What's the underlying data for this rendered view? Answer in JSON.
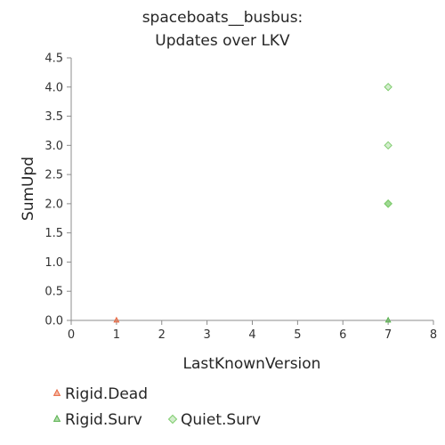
{
  "chart_data": {
    "type": "scatter",
    "title": [
      "spaceboats__busbus:",
      "Updates over LKV"
    ],
    "xlabel": "LastKnownVersion",
    "ylabel": "SumUpd",
    "xlim": [
      0,
      8
    ],
    "ylim": [
      0,
      4.5
    ],
    "x_ticks": [
      "0",
      "1",
      "2",
      "3",
      "4",
      "5",
      "6",
      "7",
      "8"
    ],
    "y_ticks": [
      "0.0",
      "0.5",
      "1.0",
      "1.5",
      "2.0",
      "2.5",
      "3.0",
      "3.5",
      "4.0",
      "4.5"
    ],
    "grid": false,
    "legend_position": "bottom-left",
    "series": [
      {
        "name": "Rigid.Dead",
        "marker": "triangle",
        "color": "#e8643c",
        "points": [
          {
            "x": 1,
            "y": 0
          }
        ]
      },
      {
        "name": "Rigid.Surv",
        "marker": "triangle",
        "color": "#55b04a",
        "points": [
          {
            "x": 7,
            "y": 0
          }
        ]
      },
      {
        "name": "Quiet.Surv",
        "marker": "diamond",
        "color": "#7fcc6e",
        "points": [
          {
            "x": 7,
            "y": 4
          },
          {
            "x": 7,
            "y": 3
          },
          {
            "x": 7,
            "y": 2
          },
          {
            "x": 7,
            "y": 2
          },
          {
            "x": 7,
            "y": 2
          }
        ]
      }
    ]
  }
}
